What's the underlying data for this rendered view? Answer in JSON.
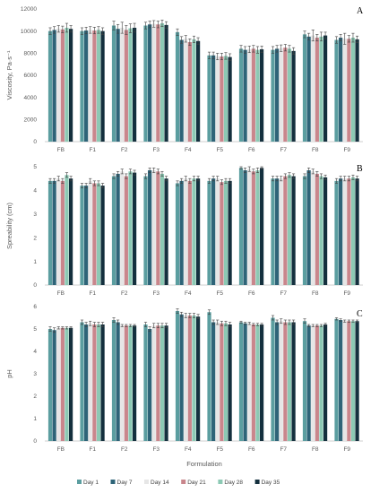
{
  "colors": {
    "Day 1": "#5b9ea0",
    "Day 7": "#2e6478",
    "Day 14": "#e6e6e6",
    "Day 21": "#c9868c",
    "Day 28": "#8cc9b4",
    "Day 35": "#14303e",
    "error_bar": "#404040",
    "axis": "#bfbfbf"
  },
  "legend": [
    "Day 1",
    "Day 7",
    "Day 14",
    "Day 21",
    "Day 28",
    "Day 35"
  ],
  "xlabel": "Formulation",
  "chart_data": [
    {
      "type": "bar",
      "panel": "A",
      "ylabel": "Viscosity, Pa·s⁻¹",
      "ylim": [
        0,
        12000
      ],
      "yticks": [
        "0",
        "2000",
        "4000",
        "6000",
        "8000",
        "10000",
        "12000"
      ],
      "ytick_values": [
        0,
        2000,
        4000,
        6000,
        8000,
        10000,
        12000
      ],
      "categories": [
        "FB",
        "F1",
        "F2",
        "F3",
        "F4",
        "F5",
        "F6",
        "F7",
        "F8",
        "F9"
      ],
      "series": [
        {
          "name": "Day 1",
          "values": [
            10000,
            10000,
            10500,
            10500,
            9900,
            7800,
            8400,
            8300,
            9700,
            9200
          ],
          "errors": [
            300,
            300,
            400,
            300,
            300,
            300,
            300,
            300,
            300,
            300
          ]
        },
        {
          "name": "Day 7",
          "values": [
            10100,
            10050,
            10200,
            10600,
            9200,
            7800,
            8300,
            8400,
            9500,
            9400
          ],
          "errors": [
            300,
            300,
            400,
            300,
            300,
            300,
            300,
            300,
            300,
            300
          ]
        },
        {
          "name": "Day 14",
          "values": [
            10200,
            10100,
            10300,
            10650,
            9300,
            7700,
            8350,
            8450,
            9600,
            9300
          ],
          "errors": [
            300,
            300,
            500,
            300,
            300,
            300,
            300,
            300,
            500,
            500
          ]
        },
        {
          "name": "Day 21",
          "values": [
            10150,
            10050,
            10100,
            10600,
            9000,
            7700,
            8400,
            8500,
            9400,
            9300
          ],
          "errors": [
            300,
            300,
            400,
            300,
            300,
            300,
            300,
            300,
            300,
            300
          ]
        },
        {
          "name": "Day 28",
          "values": [
            10300,
            10100,
            10250,
            10700,
            9250,
            7750,
            8300,
            8400,
            9500,
            9400
          ],
          "errors": [
            400,
            300,
            400,
            300,
            300,
            300,
            300,
            300,
            400,
            400
          ]
        },
        {
          "name": "Day 35",
          "values": [
            10200,
            10000,
            10300,
            10550,
            9100,
            7650,
            8350,
            8200,
            9600,
            9250
          ],
          "errors": [
            300,
            300,
            400,
            300,
            300,
            300,
            300,
            300,
            300,
            300
          ]
        }
      ]
    },
    {
      "type": "bar",
      "panel": "B",
      "ylabel": "Spreability (cm)",
      "ylim": [
        0,
        5
      ],
      "yticks": [
        "0",
        "1",
        "2",
        "3",
        "4",
        "5"
      ],
      "ytick_values": [
        0,
        1,
        2,
        3,
        4,
        5
      ],
      "categories": [
        "FB",
        "F1",
        "F2",
        "F3",
        "F4",
        "F5",
        "F6",
        "F7",
        "F8",
        "F9"
      ],
      "series": [
        {
          "name": "Day 1",
          "values": [
            4.4,
            4.2,
            4.6,
            4.6,
            4.3,
            4.4,
            4.95,
            4.5,
            4.6,
            4.4
          ],
          "errors": [
            0.1,
            0.1,
            0.1,
            0.1,
            0.1,
            0.1,
            0.05,
            0.1,
            0.1,
            0.1
          ]
        },
        {
          "name": "Day 7",
          "values": [
            4.4,
            4.2,
            4.7,
            4.85,
            4.4,
            4.5,
            4.85,
            4.5,
            4.85,
            4.5
          ],
          "errors": [
            0.1,
            0.1,
            0.1,
            0.1,
            0.1,
            0.1,
            0.1,
            0.1,
            0.1,
            0.1
          ]
        },
        {
          "name": "Day 14",
          "values": [
            4.5,
            4.4,
            4.8,
            4.85,
            4.5,
            4.5,
            4.9,
            4.5,
            4.8,
            4.5
          ],
          "errors": [
            0.1,
            0.1,
            0.1,
            0.1,
            0.1,
            0.1,
            0.1,
            0.1,
            0.1,
            0.1
          ]
        },
        {
          "name": "Day 21",
          "values": [
            4.4,
            4.3,
            4.6,
            4.8,
            4.4,
            4.35,
            4.8,
            4.6,
            4.7,
            4.5
          ],
          "errors": [
            0.1,
            0.1,
            0.1,
            0.1,
            0.1,
            0.1,
            0.1,
            0.1,
            0.1,
            0.1
          ]
        },
        {
          "name": "Day 28",
          "values": [
            4.65,
            4.3,
            4.8,
            4.7,
            4.5,
            4.4,
            4.85,
            4.65,
            4.6,
            4.55
          ],
          "errors": [
            0.1,
            0.1,
            0.1,
            0.1,
            0.1,
            0.1,
            0.1,
            0.1,
            0.1,
            0.1
          ]
        },
        {
          "name": "Day 35",
          "values": [
            4.5,
            4.2,
            4.75,
            4.5,
            4.5,
            4.4,
            4.95,
            4.6,
            4.55,
            4.5
          ],
          "errors": [
            0.1,
            0.1,
            0.1,
            0.1,
            0.1,
            0.1,
            0.05,
            0.1,
            0.1,
            0.1
          ]
        }
      ]
    },
    {
      "type": "bar",
      "panel": "C",
      "ylabel": "pH",
      "ylim": [
        0,
        6
      ],
      "yticks": [
        "0",
        "1",
        "2",
        "3",
        "4",
        "5",
        "6"
      ],
      "ytick_values": [
        0,
        1,
        2,
        3,
        4,
        5,
        6
      ],
      "categories": [
        "FB",
        "F1",
        "F2",
        "F3",
        "F4",
        "F5",
        "F6",
        "F7",
        "F8",
        "F9"
      ],
      "series": [
        {
          "name": "Day 1",
          "values": [
            5.0,
            5.3,
            5.4,
            5.2,
            5.8,
            5.75,
            5.3,
            5.5,
            5.35,
            5.45
          ],
          "errors": [
            0.1,
            0.1,
            0.1,
            0.1,
            0.1,
            0.1,
            0.05,
            0.1,
            0.1,
            0.05
          ]
        },
        {
          "name": "Day 7",
          "values": [
            4.95,
            5.2,
            5.3,
            5.0,
            5.65,
            5.3,
            5.25,
            5.3,
            5.15,
            5.4
          ],
          "errors": [
            0.1,
            0.1,
            0.1,
            0.1,
            0.1,
            0.1,
            0.05,
            0.1,
            0.05,
            0.05
          ]
        },
        {
          "name": "Day 14",
          "values": [
            5.05,
            5.25,
            5.15,
            5.15,
            5.6,
            5.3,
            5.25,
            5.35,
            5.15,
            5.35
          ],
          "errors": [
            0.05,
            0.1,
            0.05,
            0.1,
            0.1,
            0.1,
            0.05,
            0.1,
            0.05,
            0.05
          ]
        },
        {
          "name": "Day 21",
          "values": [
            5.05,
            5.2,
            5.15,
            5.15,
            5.6,
            5.25,
            5.2,
            5.3,
            5.15,
            5.35
          ],
          "errors": [
            0.05,
            0.1,
            0.05,
            0.1,
            0.1,
            0.1,
            0.05,
            0.1,
            0.05,
            0.05
          ]
        },
        {
          "name": "Day 28",
          "values": [
            5.05,
            5.2,
            5.15,
            5.15,
            5.6,
            5.25,
            5.2,
            5.3,
            5.15,
            5.35
          ],
          "errors": [
            0.05,
            0.1,
            0.05,
            0.1,
            0.1,
            0.1,
            0.05,
            0.1,
            0.05,
            0.05
          ]
        },
        {
          "name": "Day 35",
          "values": [
            5.05,
            5.2,
            5.15,
            5.15,
            5.55,
            5.2,
            5.2,
            5.3,
            5.2,
            5.35
          ],
          "errors": [
            0.05,
            0.1,
            0.05,
            0.1,
            0.1,
            0.1,
            0.05,
            0.1,
            0.05,
            0.05
          ]
        }
      ]
    }
  ]
}
